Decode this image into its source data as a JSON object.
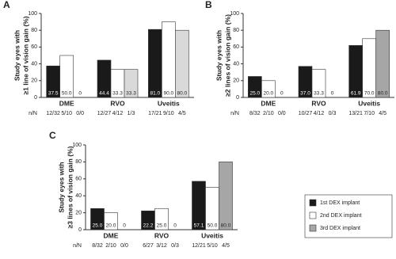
{
  "chart_data": [
    {
      "type": "bar",
      "title": "A",
      "ylabel": [
        "Study eyes with",
        "≥1 line of vision gain (%)"
      ],
      "count_label": "n/N",
      "categories": [
        "DME",
        "RVO",
        "Uveitis"
      ],
      "ylim": [
        0,
        100
      ],
      "yticks": [
        0,
        20,
        40,
        60,
        80,
        100
      ],
      "series": [
        {
          "color": "#1a1a1a",
          "values": [
            37.5,
            44.4,
            81.0
          ],
          "value_labels": [
            "37.5",
            "44.4",
            "81.0"
          ],
          "counts": [
            "12/32",
            "12/27",
            "17/21"
          ]
        },
        {
          "color": "#ffffff",
          "values": [
            50.0,
            33.3,
            90.0
          ],
          "value_labels": [
            "50.0",
            "33.3",
            "90.0"
          ],
          "counts": [
            "5/10",
            "4/12",
            "9/10"
          ]
        },
        {
          "color": "#d9d9d9",
          "values": [
            0,
            33.3,
            80.0
          ],
          "value_labels": [
            "0",
            "33.3",
            "80.0"
          ],
          "counts": [
            "0/0",
            "1/3",
            "4/5"
          ]
        }
      ]
    },
    {
      "type": "bar",
      "title": "B",
      "ylabel": [
        "Study eyes with",
        "≥2 lines of vision gain (%)"
      ],
      "count_label": "n/N",
      "categories": [
        "DME",
        "RVO",
        "Uveitis"
      ],
      "ylim": [
        0,
        100
      ],
      "yticks": [
        0,
        20,
        40,
        60,
        80,
        100
      ],
      "series": [
        {
          "color": "#1a1a1a",
          "values": [
            25.0,
            37.0,
            61.9
          ],
          "value_labels": [
            "25.0",
            "37.0",
            "61.9"
          ],
          "counts": [
            "8/32",
            "10/27",
            "13/21"
          ]
        },
        {
          "color": "#ffffff",
          "values": [
            20.0,
            33.3,
            70.0
          ],
          "value_labels": [
            "20.0",
            "33.3",
            "70.0"
          ],
          "counts": [
            "2/10",
            "4/12",
            "7/10"
          ]
        },
        {
          "color": "#a6a6a6",
          "values": [
            0,
            0,
            80.0
          ],
          "value_labels": [
            "0",
            "0",
            "80.0"
          ],
          "counts": [
            "0/0",
            "0/3",
            "4/5"
          ]
        }
      ]
    },
    {
      "type": "bar",
      "title": "C",
      "ylabel": [
        "Study eyes with",
        "≥3 lines of vision gain (%)"
      ],
      "count_label": "n/N",
      "categories": [
        "DME",
        "RVO",
        "Uveitis"
      ],
      "ylim": [
        0,
        100
      ],
      "yticks": [
        0,
        20,
        40,
        60,
        80,
        100
      ],
      "legend": "right",
      "series": [
        {
          "name": "1st DEX implant",
          "color": "#1a1a1a",
          "values": [
            25.0,
            22.2,
            57.1
          ],
          "value_labels": [
            "25.0",
            "22.2",
            "57.1"
          ],
          "counts": [
            "8/32",
            "6/27",
            "12/21"
          ]
        },
        {
          "name": "2nd DEX implant",
          "color": "#ffffff",
          "values": [
            20.0,
            25.0,
            50.0
          ],
          "value_labels": [
            "20.0",
            "25.0",
            "50.0"
          ],
          "counts": [
            "2/10",
            "3/12",
            "5/10"
          ]
        },
        {
          "name": "3rd DEX implant",
          "color": "#a6a6a6",
          "values": [
            0,
            0,
            80.0
          ],
          "value_labels": [
            "0",
            "0",
            "80.0"
          ],
          "counts": [
            "0/0",
            "0/3",
            "4/5"
          ]
        }
      ]
    }
  ]
}
